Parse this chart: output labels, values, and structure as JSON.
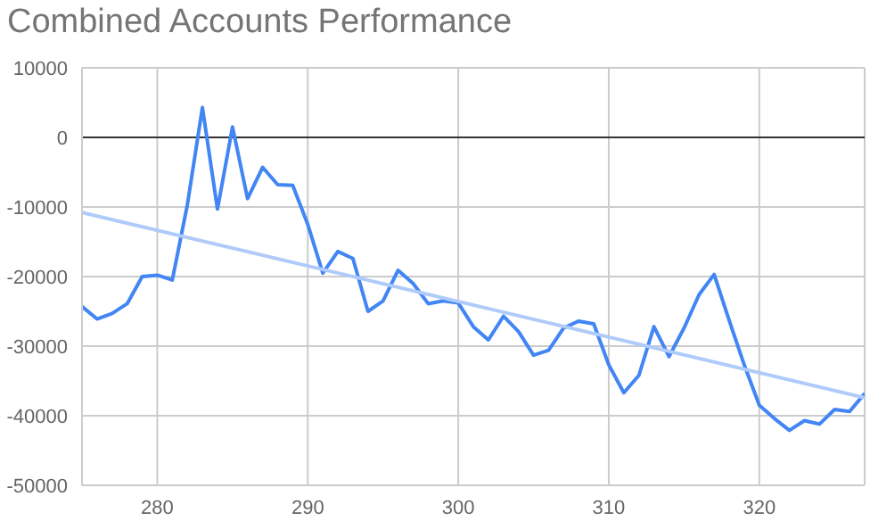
{
  "chart_data": {
    "type": "line",
    "title": "Combined Accounts Performance",
    "x": [
      275,
      276,
      277,
      278,
      279,
      280,
      281,
      282,
      283,
      284,
      285,
      286,
      287,
      288,
      289,
      290,
      291,
      292,
      293,
      294,
      295,
      296,
      297,
      298,
      299,
      300,
      301,
      302,
      303,
      304,
      305,
      306,
      307,
      308,
      309,
      310,
      311,
      312,
      313,
      314,
      315,
      316,
      317,
      318,
      319,
      320,
      321,
      322,
      323,
      324,
      325,
      326,
      327
    ],
    "series": [
      {
        "color": "#4285f4",
        "values": [
          -24300,
          -26100,
          -25300,
          -23900,
          -20000,
          -19800,
          -20500,
          -9700,
          4300,
          -10300,
          1500,
          -8800,
          -4300,
          -6800,
          -6900,
          -12500,
          -19500,
          -16400,
          -17400,
          -25000,
          -23500,
          -19100,
          -21000,
          -23900,
          -23500,
          -23800,
          -27200,
          -29100,
          -25700,
          -27900,
          -31300,
          -30600,
          -27400,
          -26400,
          -26800,
          -32700,
          -36700,
          -34200,
          -27200,
          -31500,
          -27400,
          -22600,
          -19700,
          -26300,
          -32700,
          -38500,
          -40400,
          -42100,
          -40700,
          -41200,
          -39100,
          -39400,
          -36800
        ]
      },
      {
        "type": "line",
        "color": "#aecbfa",
        "x": [
          275,
          327
        ],
        "values": [
          -10800,
          -37400
        ]
      }
    ],
    "xlim": [
      275,
      327
    ],
    "xticks": [
      280,
      290,
      300,
      310,
      320
    ],
    "ylim": [
      -50000,
      10000
    ],
    "yticks": [
      -50000,
      -40000,
      -30000,
      -20000,
      -10000,
      0,
      10000
    ],
    "ref_lines": [
      {
        "axis": "y",
        "value": 0,
        "color": "#333333"
      }
    ],
    "grid": true,
    "legend": false,
    "marker": "none",
    "line_style": "solid"
  }
}
